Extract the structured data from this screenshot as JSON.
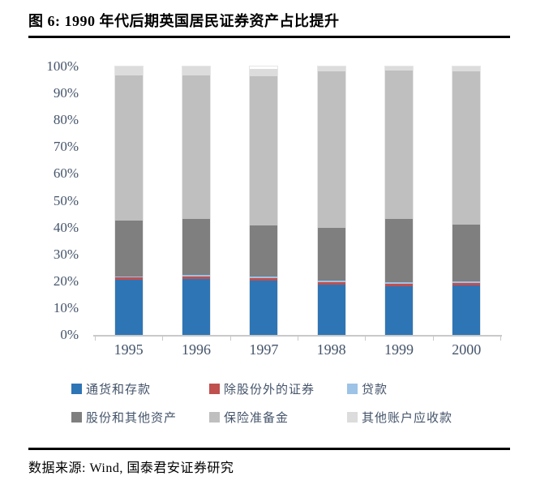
{
  "title": "图 6: 1990 年代后期英国居民证券资产占比提升",
  "source": "数据来源: Wind, 国泰君安证券研究",
  "colors": {
    "axis_text": "#44546A",
    "axis_line": "#C9C9C9",
    "title_text": "#000000",
    "rule": "#000000"
  },
  "chart_data": {
    "type": "bar",
    "stacked": true,
    "stack_mode": "percent",
    "title": "",
    "xlabel": "",
    "ylabel": "",
    "ylim": [
      0,
      100
    ],
    "grid": false,
    "legend_position": "bottom",
    "categories": [
      "1995",
      "1996",
      "1997",
      "1998",
      "1999",
      "2000"
    ],
    "yticks": [
      "0%",
      "10%",
      "20%",
      "30%",
      "40%",
      "50%",
      "60%",
      "70%",
      "80%",
      "90%",
      "100%"
    ],
    "series": [
      {
        "name": "通货和存款",
        "color": "#2E75B6",
        "values": [
          20.5,
          20.8,
          20.2,
          18.7,
          18.1,
          18.4
        ]
      },
      {
        "name": "除股份外的证券",
        "color": "#C0504D",
        "values": [
          1.0,
          1.0,
          0.9,
          0.9,
          0.9,
          0.9
        ]
      },
      {
        "name": "贷款",
        "color": "#9DC3E6",
        "values": [
          0.3,
          0.6,
          0.7,
          0.6,
          0.6,
          0.6
        ]
      },
      {
        "name": "股份和其他资产",
        "color": "#7F7F7F",
        "values": [
          20.8,
          20.8,
          19.0,
          19.7,
          23.6,
          21.2
        ]
      },
      {
        "name": "保险准备金",
        "color": "#BFBFBF",
        "values": [
          54.1,
          53.5,
          55.5,
          58.3,
          55.3,
          57.1
        ]
      },
      {
        "name": "其他账户应收款",
        "color": "#DCDCDC",
        "values": [
          3.3,
          3.3,
          2.7,
          1.8,
          1.5,
          1.8
        ]
      }
    ]
  }
}
